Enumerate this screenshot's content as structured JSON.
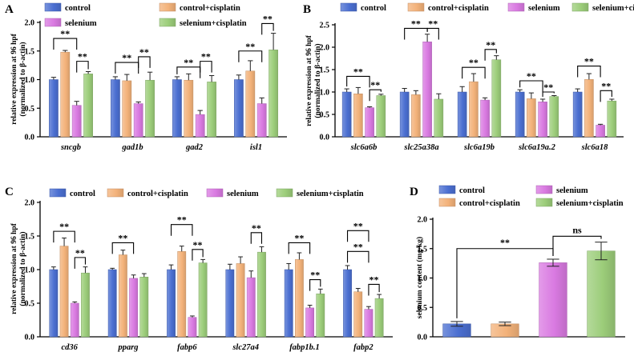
{
  "chart_data": [
    {
      "id": "A",
      "panel": "A",
      "type": "bar",
      "ylabel": [
        "relative expression at 96 hpf",
        "(normalized to β-actin)"
      ],
      "ylim": [
        0,
        2.0
      ],
      "yticks": [
        "0.0",
        "0.5",
        "1.0",
        "1.5",
        "2.0"
      ],
      "categories": [
        "sncgb",
        "gad1b",
        "gad2",
        "isl1"
      ],
      "series": [
        {
          "name": "control",
          "color": "#4b6fd1",
          "values": [
            1.0,
            1.0,
            1.0,
            1.0
          ],
          "errors": [
            0.04,
            0.05,
            0.05,
            0.08
          ]
        },
        {
          "name": "control+cisplatin",
          "color": "#f3b27a",
          "values": [
            1.48,
            0.98,
            0.99,
            1.15
          ],
          "errors": [
            0.03,
            0.11,
            0.11,
            0.18
          ]
        },
        {
          "name": "selenium",
          "color": "#d97ae1",
          "values": [
            0.55,
            0.58,
            0.39,
            0.58
          ],
          "errors": [
            0.07,
            0.03,
            0.07,
            0.1
          ]
        },
        {
          "name": "selenium+cisplatin",
          "color": "#9ccd7a",
          "values": [
            1.1,
            0.99,
            0.96,
            1.52
          ],
          "errors": [
            0.04,
            0.14,
            0.11,
            0.29
          ]
        }
      ],
      "significance": [
        {
          "text": "**",
          "cat": 0,
          "from": 0,
          "to": 2,
          "level": 1.72
        },
        {
          "text": "**",
          "cat": 0,
          "from": 2,
          "to": 3,
          "level": 1.32
        },
        {
          "text": "**",
          "cat": 1,
          "from": 0,
          "to": 2,
          "level": 1.3
        },
        {
          "text": "**",
          "cat": 1,
          "from": 2,
          "to": 3,
          "level": 1.4
        },
        {
          "text": "**",
          "cat": 2,
          "from": 0,
          "to": 2,
          "level": 1.22
        },
        {
          "text": "**",
          "cat": 2,
          "from": 2,
          "to": 3,
          "level": 1.32
        },
        {
          "text": "**",
          "cat": 3,
          "from": 0,
          "to": 2,
          "level": 1.5
        },
        {
          "text": "**",
          "cat": 3,
          "from": 2,
          "to": 3,
          "level": 1.98
        }
      ],
      "legend": [
        "control",
        "control+cisplatin",
        "selenium",
        "selenium+cisplatin"
      ]
    },
    {
      "id": "B",
      "panel": "B",
      "type": "bar",
      "ylabel": [
        "relative expression at 96 hpf",
        "(normalized to β-actin)"
      ],
      "ylim": [
        0,
        2.5
      ],
      "yticks": [
        "0.0",
        "0.5",
        "1.0",
        "1.5",
        "2.0",
        "2.5"
      ],
      "categories": [
        "slc6a6b",
        "slc25a38a",
        "slc6a19b",
        "slc6a19a.2",
        "slc6a18"
      ],
      "series": [
        {
          "name": "control",
          "color": "#4b6fd1",
          "values": [
            1.0,
            1.0,
            1.0,
            1.0,
            1.0
          ],
          "errors": [
            0.07,
            0.08,
            0.12,
            0.05,
            0.07
          ]
        },
        {
          "name": "control+cisplatin",
          "color": "#f3b27a",
          "values": [
            0.96,
            0.94,
            1.23,
            0.85,
            1.28
          ],
          "errors": [
            0.14,
            0.09,
            0.18,
            0.13,
            0.13
          ]
        },
        {
          "name": "selenium",
          "color": "#d97ae1",
          "values": [
            0.65,
            2.12,
            0.82,
            0.78,
            0.26
          ],
          "errors": [
            0.02,
            0.17,
            0.05,
            0.06,
            0.02
          ]
        },
        {
          "name": "selenium+cisplatin",
          "color": "#9ccd7a",
          "values": [
            0.92,
            0.84,
            1.72,
            0.9,
            0.8
          ],
          "errors": [
            0.03,
            0.12,
            0.09,
            0.02,
            0.04
          ]
        }
      ],
      "significance": [
        {
          "text": "**",
          "cat": 0,
          "from": 0,
          "to": 2,
          "level": 1.35
        },
        {
          "text": "**",
          "cat": 0,
          "from": 2,
          "to": 3,
          "level": 1.05
        },
        {
          "text": "**",
          "cat": 1,
          "from": 0,
          "to": 2,
          "level": 2.42
        },
        {
          "text": "**",
          "cat": 1,
          "from": 2,
          "to": 3,
          "level": 2.42
        },
        {
          "text": "**",
          "cat": 2,
          "from": 0,
          "to": 2,
          "level": 1.55
        },
        {
          "text": "**",
          "cat": 2,
          "from": 2,
          "to": 3,
          "level": 1.95
        },
        {
          "text": "**",
          "cat": 3,
          "from": 0,
          "to": 2,
          "level": 1.25
        },
        {
          "text": "**",
          "cat": 3,
          "from": 2,
          "to": 3,
          "level": 1.0
        },
        {
          "text": "**",
          "cat": 4,
          "from": 0,
          "to": 2,
          "level": 1.58
        },
        {
          "text": "**",
          "cat": 4,
          "from": 2,
          "to": 3,
          "level": 1.03
        }
      ],
      "legend": [
        "control",
        "control+cisplatin",
        "selenium",
        "selenium+cisplatin"
      ]
    },
    {
      "id": "C",
      "panel": "C",
      "type": "bar",
      "ylabel": [
        "relative expression at 96 hpf",
        "(normalized to β-actin)"
      ],
      "ylim": [
        0,
        2.0
      ],
      "yticks": [
        "0.0",
        "0.5",
        "1.0",
        "1.5",
        "2.0"
      ],
      "categories": [
        "cd36",
        "pparg",
        "fabp6",
        "slc27a4",
        "fabp1b.1",
        "fabp2"
      ],
      "series": [
        {
          "name": "control",
          "color": "#4b6fd1",
          "values": [
            1.0,
            1.0,
            1.0,
            1.0,
            1.0,
            1.0
          ],
          "errors": [
            0.04,
            0.02,
            0.07,
            0.08,
            0.09,
            0.06
          ]
        },
        {
          "name": "control+cisplatin",
          "color": "#f3b27a",
          "values": [
            1.35,
            1.22,
            1.27,
            1.09,
            1.15,
            0.67
          ],
          "errors": [
            0.12,
            0.07,
            0.08,
            0.1,
            0.1,
            0.05
          ]
        },
        {
          "name": "selenium",
          "color": "#d97ae1",
          "values": [
            0.5,
            0.87,
            0.29,
            0.88,
            0.43,
            0.41
          ],
          "errors": [
            0.02,
            0.05,
            0.02,
            0.1,
            0.04,
            0.04
          ]
        },
        {
          "name": "selenium+cisplatin",
          "color": "#9ccd7a",
          "values": [
            0.95,
            0.89,
            1.1,
            1.26,
            0.64,
            0.57
          ],
          "errors": [
            0.09,
            0.05,
            0.05,
            0.08,
            0.07,
            0.06
          ]
        }
      ],
      "significance": [
        {
          "text": "**",
          "cat": 0,
          "from": 0,
          "to": 2,
          "level": 1.57
        },
        {
          "text": "**",
          "cat": 0,
          "from": 2,
          "to": 3,
          "level": 1.18
        },
        {
          "text": "**",
          "cat": 1,
          "from": 0,
          "to": 2,
          "level": 1.4
        },
        {
          "text": "**",
          "cat": 2,
          "from": 0,
          "to": 2,
          "level": 1.67
        },
        {
          "text": "**",
          "cat": 2,
          "from": 2,
          "to": 3,
          "level": 1.3
        },
        {
          "text": "**",
          "cat": 3,
          "from": 2,
          "to": 3,
          "level": 1.55
        },
        {
          "text": "**",
          "cat": 4,
          "from": 0,
          "to": 2,
          "level": 1.4
        },
        {
          "text": "**",
          "cat": 4,
          "from": 2,
          "to": 3,
          "level": 0.85
        },
        {
          "text": "**",
          "cat": 5,
          "from": 0,
          "to": 2,
          "level": 1.58
        },
        {
          "text": "**",
          "cat": 5,
          "from": 0,
          "to": 2,
          "level": 1.27
        },
        {
          "text": "**",
          "cat": 5,
          "from": 2,
          "to": 3,
          "level": 0.78
        }
      ],
      "legend": [
        "control",
        "control+cisplatin",
        "selenium",
        "selenium+cisplatin"
      ]
    },
    {
      "id": "D",
      "panel": "D",
      "type": "bar",
      "ylabel": [
        "selenium content (mg/kg)"
      ],
      "ylim": [
        0,
        2.0
      ],
      "yticks": [
        "0.0",
        "0.5",
        "1.0",
        "1.5",
        "2.0"
      ],
      "categories": [
        "control",
        "control+cisplatin",
        "selenium",
        "selenium+cisplatin"
      ],
      "values": [
        0.22,
        0.22,
        1.26,
        1.46
      ],
      "errors": [
        0.04,
        0.03,
        0.06,
        0.15
      ],
      "colors": [
        "#4b6fd1",
        "#f3b27a",
        "#d97ae1",
        "#9ccd7a"
      ],
      "significance": [
        {
          "text": "**",
          "from": 0,
          "to": 2,
          "level": 1.5
        },
        {
          "text": "ns",
          "from": 2,
          "to": 3,
          "level": 1.71
        }
      ],
      "legend": [
        "control",
        "selenium",
        "control+cisplatin",
        "selenium+cisplatin"
      ]
    }
  ]
}
